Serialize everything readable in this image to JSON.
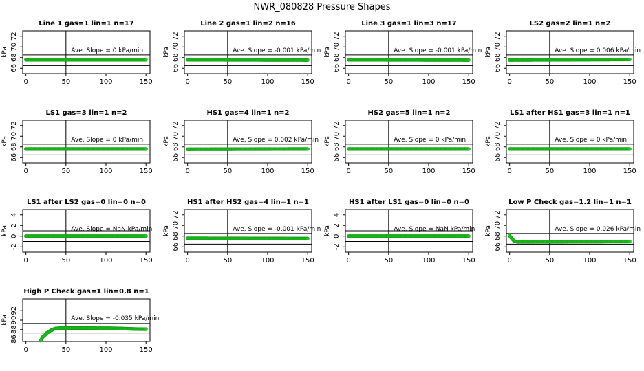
{
  "title": "NWR_080828  Pressure Shapes",
  "colors": {
    "points": "#22cc22",
    "points_dark": "#119911",
    "axis": "#000000"
  },
  "chart_data": [
    {
      "type": "scatter",
      "title": "Line 1 gas=1 lin=1 n=17",
      "ylabel": "kPa",
      "ylim": [
        65,
        73
      ],
      "yticks": [
        66,
        68,
        70,
        72
      ],
      "xlim": [
        -4,
        155
      ],
      "xticks": [
        0,
        50,
        100,
        150
      ],
      "vline": 50,
      "hlines": [
        66.5,
        68.5
      ],
      "annotation": "Ave. Slope = 0 kPa/min",
      "points": [
        [
          0,
          67.6
        ],
        [
          150,
          67.6
        ]
      ],
      "interpolation": "linear"
    },
    {
      "type": "scatter",
      "title": "Line 2 gas=1 lin=2 n=16",
      "ylabel": "kPa",
      "ylim": [
        65,
        73
      ],
      "yticks": [
        66,
        68,
        70,
        72
      ],
      "xlim": [
        -4,
        155
      ],
      "xticks": [
        0,
        50,
        100,
        150
      ],
      "vline": 50,
      "hlines": [
        66.5,
        68.5
      ],
      "annotation": "Ave. Slope = -0.001  kPa/min",
      "points": [
        [
          0,
          67.6
        ],
        [
          150,
          67.55
        ]
      ],
      "interpolation": "linear"
    },
    {
      "type": "scatter",
      "title": "Line 3 gas=1 lin=3 n=17",
      "ylabel": "kPa",
      "ylim": [
        65,
        73
      ],
      "yticks": [
        66,
        68,
        70,
        72
      ],
      "xlim": [
        -4,
        155
      ],
      "xticks": [
        0,
        50,
        100,
        150
      ],
      "vline": 50,
      "hlines": [
        66.5,
        68.5
      ],
      "annotation": "Ave. Slope = -0.001  kPa/min",
      "points": [
        [
          0,
          67.6
        ],
        [
          150,
          67.55
        ]
      ],
      "interpolation": "linear"
    },
    {
      "type": "scatter",
      "title": "LS2 gas=2 lin=1 n=2",
      "ylabel": "kPa",
      "ylim": [
        65,
        73
      ],
      "yticks": [
        66,
        68,
        70,
        72
      ],
      "xlim": [
        -4,
        155
      ],
      "xticks": [
        0,
        50,
        100,
        150
      ],
      "vline": 50,
      "hlines": [
        66.5,
        68.5
      ],
      "annotation": "Ave. Slope = 0.006  kPa/min",
      "points": [
        [
          0,
          67.55
        ],
        [
          150,
          67.65
        ]
      ],
      "interpolation": "linear"
    },
    {
      "type": "scatter",
      "title": "LS1 gas=3 lin=1 n=2",
      "ylabel": "kPa",
      "ylim": [
        65,
        73
      ],
      "yticks": [
        66,
        68,
        70,
        72
      ],
      "xlim": [
        -4,
        155
      ],
      "xticks": [
        0,
        50,
        100,
        150
      ],
      "vline": 50,
      "hlines": [
        66.5,
        68.5
      ],
      "annotation": "Ave. Slope = 0 kPa/min",
      "points": [
        [
          0,
          67.6
        ],
        [
          150,
          67.6
        ]
      ],
      "interpolation": "linear"
    },
    {
      "type": "scatter",
      "title": "HS1 gas=4 lin=1 n=2",
      "ylabel": "kPa",
      "ylim": [
        65,
        73
      ],
      "yticks": [
        66,
        68,
        70,
        72
      ],
      "xlim": [
        -4,
        155
      ],
      "xticks": [
        0,
        50,
        100,
        150
      ],
      "vline": 50,
      "hlines": [
        66.5,
        68.5
      ],
      "annotation": "Ave. Slope = 0.002  kPa/min",
      "points": [
        [
          0,
          67.55
        ],
        [
          150,
          67.6
        ]
      ],
      "interpolation": "linear"
    },
    {
      "type": "scatter",
      "title": "HS2 gas=5 lin=1 n=2",
      "ylabel": "kPa",
      "ylim": [
        65,
        73
      ],
      "yticks": [
        66,
        68,
        70,
        72
      ],
      "xlim": [
        -4,
        155
      ],
      "xticks": [
        0,
        50,
        100,
        150
      ],
      "vline": 50,
      "hlines": [
        66.5,
        68.5
      ],
      "annotation": "Ave. Slope = 0 kPa/min",
      "points": [
        [
          0,
          67.6
        ],
        [
          150,
          67.6
        ]
      ],
      "interpolation": "linear"
    },
    {
      "type": "scatter",
      "title": "LS1 after HS1 gas=3 lin=1 n=1",
      "ylabel": "kPa",
      "ylim": [
        65,
        73
      ],
      "yticks": [
        66,
        68,
        70,
        72
      ],
      "xlim": [
        -4,
        155
      ],
      "xticks": [
        0,
        50,
        100,
        150
      ],
      "vline": 50,
      "hlines": [
        66.5,
        68.5
      ],
      "annotation": "Ave. Slope = 0 kPa/min",
      "points": [
        [
          0,
          67.6
        ],
        [
          150,
          67.6
        ]
      ],
      "interpolation": "linear"
    },
    {
      "type": "scatter",
      "title": "LS1 after LS2 gas=0 lin=0 n=0",
      "ylabel": "kPa",
      "ylim": [
        -3,
        5
      ],
      "yticks": [
        -2,
        0,
        2,
        4
      ],
      "xlim": [
        -4,
        155
      ],
      "xticks": [
        0,
        50,
        100,
        150
      ],
      "vline": 50,
      "hlines": [
        -1,
        1
      ],
      "annotation": "Ave. Slope = NaN  kPa/min",
      "points": [
        [
          0,
          0
        ],
        [
          150,
          0
        ]
      ],
      "interpolation": "linear"
    },
    {
      "type": "scatter",
      "title": "HS1 after HS2 gas=4 lin=1 n=1",
      "ylabel": "kPa",
      "ylim": [
        65,
        73
      ],
      "yticks": [
        66,
        68,
        70,
        72
      ],
      "xlim": [
        -4,
        155
      ],
      "xticks": [
        0,
        50,
        100,
        150
      ],
      "vline": 50,
      "hlines": [
        66.5,
        68.5
      ],
      "annotation": "Ave. Slope = -0.001  kPa/min",
      "points": [
        [
          0,
          67.6
        ],
        [
          150,
          67.55
        ]
      ],
      "interpolation": "linear"
    },
    {
      "type": "scatter",
      "title": "HS1 after LS1 gas=0 lin=0 n=0",
      "ylabel": "kPa",
      "ylim": [
        -3,
        5
      ],
      "yticks": [
        -2,
        0,
        2,
        4
      ],
      "xlim": [
        -4,
        155
      ],
      "xticks": [
        0,
        50,
        100,
        150
      ],
      "vline": 50,
      "hlines": [
        -1,
        1
      ],
      "annotation": "Ave. Slope = NaN  kPa/min",
      "points": [
        [
          0,
          0
        ],
        [
          150,
          0
        ]
      ],
      "interpolation": "linear"
    },
    {
      "type": "scatter",
      "title": "Low P Check gas=1.2 lin=1 n=1",
      "ylabel": "kPa",
      "ylim": [
        65,
        73
      ],
      "yticks": [
        66,
        68,
        70,
        72
      ],
      "xlim": [
        -4,
        155
      ],
      "xticks": [
        0,
        50,
        100,
        150
      ],
      "vline": 50,
      "hlines": [
        66.5,
        68.5
      ],
      "annotation": "Ave. Slope = 0.026  kPa/min",
      "points": [
        [
          0,
          68.1
        ],
        [
          3,
          67.5
        ],
        [
          6,
          67.05
        ],
        [
          10,
          66.95
        ],
        [
          150,
          67.0
        ]
      ],
      "interpolation": "linear"
    },
    {
      "type": "scatter",
      "title": "High P Check gas=1 lin=0.8 n=1",
      "ylabel": "kPa",
      "ylim": [
        85.5,
        94.5
      ],
      "yticks": [
        86,
        88,
        90,
        92
      ],
      "xlim": [
        -4,
        155
      ],
      "xticks": [
        0,
        50,
        100,
        150
      ],
      "vline": 50,
      "hlines": [
        87.3,
        89.3
      ],
      "annotation": "Ave. Slope = -0.035  kPa/min",
      "points": [
        [
          18,
          85.7
        ],
        [
          22,
          86.6
        ],
        [
          27,
          87.4
        ],
        [
          32,
          87.9
        ],
        [
          37,
          88.25
        ],
        [
          45,
          88.35
        ],
        [
          100,
          88.3
        ],
        [
          150,
          88.1
        ]
      ],
      "interpolation": "monotone"
    }
  ]
}
